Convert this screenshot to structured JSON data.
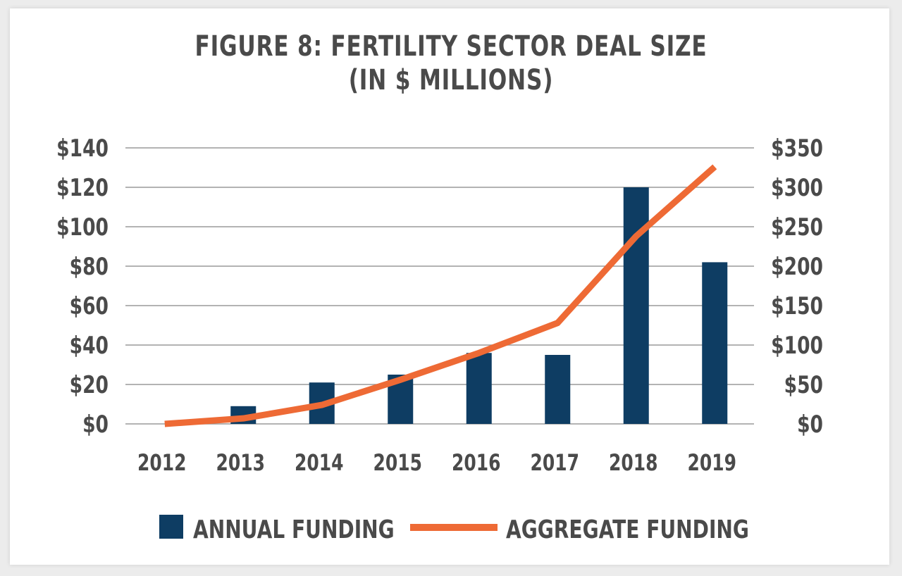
{
  "title_line1": "FIGURE 8: FERTILITY SECTOR DEAL SIZE",
  "title_line2": "(IN $ MILLIONS)",
  "colors": {
    "bar": "#0e3d63",
    "line": "#ee6a35",
    "grid": "#9a9a9a",
    "text": "#4a4a4a"
  },
  "chart_data": {
    "type": "bar",
    "categories": [
      "2012",
      "2013",
      "2014",
      "2015",
      "2016",
      "2017",
      "2018",
      "2019"
    ],
    "series": [
      {
        "name": "ANNUAL FUNDING",
        "type": "bar",
        "axis": "left",
        "values": [
          0,
          9,
          21,
          25,
          36,
          35,
          120,
          82
        ]
      },
      {
        "name": "AGGREGATE FUNDING",
        "type": "line",
        "axis": "right",
        "values": [
          0,
          7,
          24,
          56,
          90,
          128,
          238,
          326
        ]
      }
    ],
    "y_left": {
      "min": 0,
      "max": 140,
      "ticks": [
        0,
        20,
        40,
        60,
        80,
        100,
        120,
        140
      ],
      "tick_labels": [
        "$0",
        "$20",
        "$40",
        "$60",
        "$80",
        "$100",
        "$120",
        "$140"
      ]
    },
    "y_right": {
      "min": 0,
      "max": 350,
      "ticks": [
        0,
        50,
        100,
        150,
        200,
        250,
        300,
        350
      ],
      "tick_labels": [
        "$0",
        "$50",
        "$100",
        "$150",
        "$200",
        "$250",
        "$300",
        "$350"
      ]
    },
    "grid": true,
    "legend_position": "bottom"
  }
}
